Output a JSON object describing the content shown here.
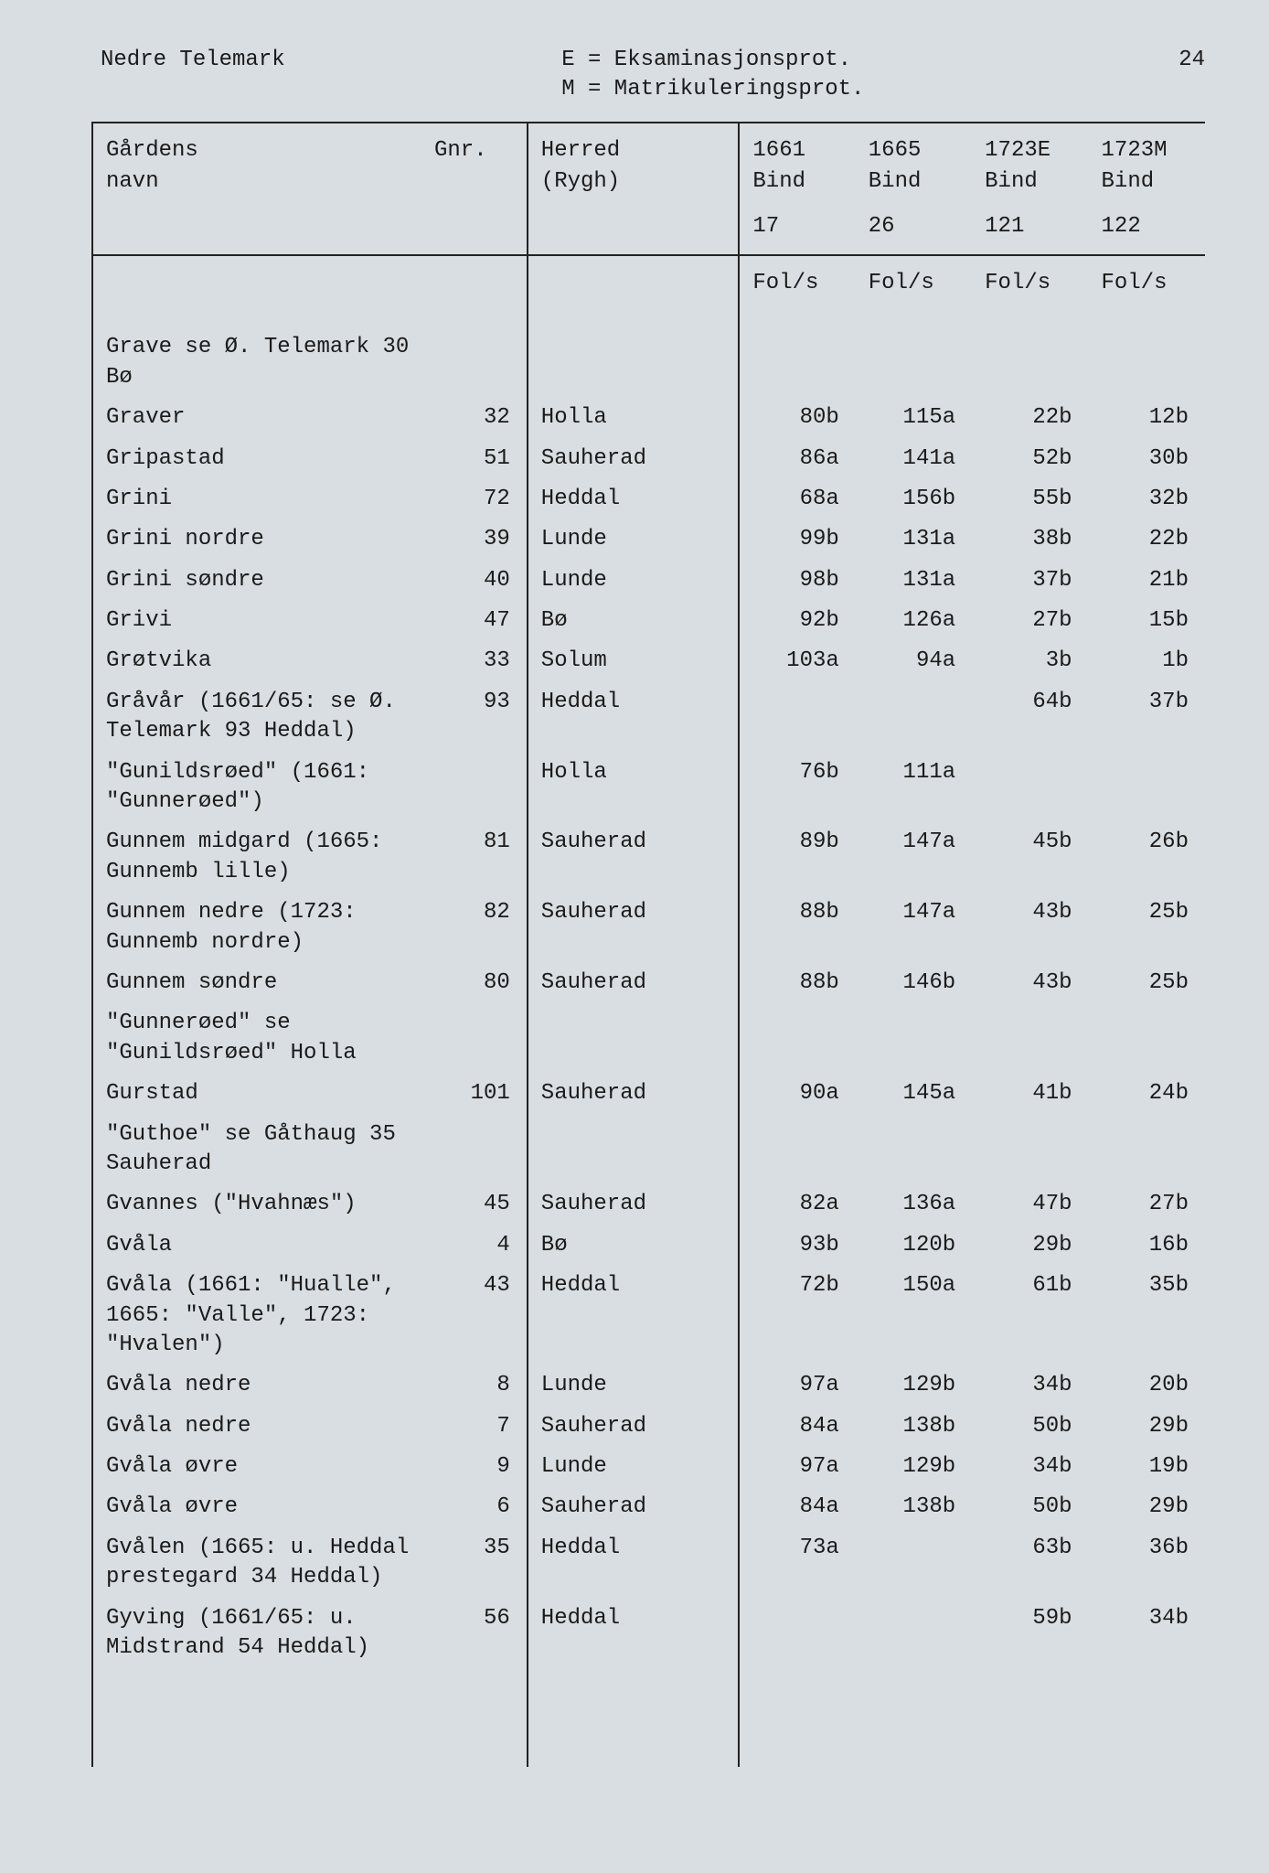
{
  "page_number": "24",
  "region": "Nedre Telemark",
  "legend": {
    "line1": "E = Eksaminasjonsprot.",
    "line2": "M = Matrikuleringsprot."
  },
  "columns": {
    "name_l1": "Gårdens",
    "name_l2": "navn",
    "gnr": "Gnr.",
    "herred_l1": "Herred",
    "herred_l2": "(Rygh)",
    "y1_l1": "1661",
    "y1_l2": "Bind",
    "y1_bind": "17",
    "y2_l1": "1665",
    "y2_l2": "Bind",
    "y2_bind": "26",
    "y3_l1": "1723E",
    "y3_l2": "Bind",
    "y3_bind": "121",
    "y4_l1": "1723M",
    "y4_l2": "Bind",
    "y4_bind": "122",
    "fols": "Fol/s"
  },
  "rows": [
    {
      "name": "Grave se Ø. Telemark 30 Bø",
      "gnr": "",
      "herred": "",
      "c1": "",
      "c2": "",
      "c3": "",
      "c4": ""
    },
    {
      "name": "Graver",
      "gnr": "32",
      "herred": "Holla",
      "c1": "80b",
      "c2": "115a",
      "c3": "22b",
      "c4": "12b"
    },
    {
      "name": "Gripastad",
      "gnr": "51",
      "herred": "Sauherad",
      "c1": "86a",
      "c2": "141a",
      "c3": "52b",
      "c4": "30b"
    },
    {
      "name": "Grini",
      "gnr": "72",
      "herred": "Heddal",
      "c1": "68a",
      "c2": "156b",
      "c3": "55b",
      "c4": "32b"
    },
    {
      "name": "Grini nordre",
      "gnr": "39",
      "herred": "Lunde",
      "c1": "99b",
      "c2": "131a",
      "c3": "38b",
      "c4": "22b"
    },
    {
      "name": "Grini søndre",
      "gnr": "40",
      "herred": "Lunde",
      "c1": "98b",
      "c2": "131a",
      "c3": "37b",
      "c4": "21b"
    },
    {
      "name": "Grivi",
      "gnr": "47",
      "herred": "Bø",
      "c1": "92b",
      "c2": "126a",
      "c3": "27b",
      "c4": "15b"
    },
    {
      "name": "Grøtvika",
      "gnr": "33",
      "herred": "Solum",
      "c1": "103a",
      "c2": "94a",
      "c3": "3b",
      "c4": "1b"
    },
    {
      "name": "Gråvår (1661/65: se Ø. Telemark 93 Heddal)",
      "gnr": "93",
      "herred": "Heddal",
      "c1": "",
      "c2": "",
      "c3": "64b",
      "c4": "37b"
    },
    {
      "name": "\"Gunildsrøed\" (1661: \"Gunnerøed\")",
      "gnr": "",
      "herred": "Holla",
      "c1": "76b",
      "c2": "111a",
      "c3": "",
      "c4": ""
    },
    {
      "name": "Gunnem midgard (1665: Gunnemb lille)",
      "gnr": "81",
      "herred": "Sauherad",
      "c1": "89b",
      "c2": "147a",
      "c3": "45b",
      "c4": "26b"
    },
    {
      "name": "Gunnem nedre (1723: Gunnemb nordre)",
      "gnr": "82",
      "herred": "Sauherad",
      "c1": "88b",
      "c2": "147a",
      "c3": "43b",
      "c4": "25b"
    },
    {
      "name": "Gunnem søndre",
      "gnr": "80",
      "herred": "Sauherad",
      "c1": "88b",
      "c2": "146b",
      "c3": "43b",
      "c4": "25b"
    },
    {
      "name": "\"Gunnerøed\" se \"Gunildsrøed\" Holla",
      "gnr": "",
      "herred": "",
      "c1": "",
      "c2": "",
      "c3": "",
      "c4": ""
    },
    {
      "name": "Gurstad",
      "gnr": "101",
      "herred": "Sauherad",
      "c1": "90a",
      "c2": "145a",
      "c3": "41b",
      "c4": "24b"
    },
    {
      "name": "\"Guthoe\" se Gåthaug 35 Sauherad",
      "gnr": "",
      "herred": "",
      "c1": "",
      "c2": "",
      "c3": "",
      "c4": ""
    },
    {
      "name": "Gvannes (\"Hvahnæs\")",
      "gnr": "45",
      "herred": "Sauherad",
      "c1": "82a",
      "c2": "136a",
      "c3": "47b",
      "c4": "27b"
    },
    {
      "name": "Gvåla",
      "gnr": "4",
      "herred": "Bø",
      "c1": "93b",
      "c2": "120b",
      "c3": "29b",
      "c4": "16b"
    },
    {
      "name": "Gvåla (1661: \"Hualle\", 1665: \"Valle\", 1723: \"Hvalen\")",
      "gnr": "43",
      "herred": "Heddal",
      "c1": "72b",
      "c2": "150a",
      "c3": "61b",
      "c4": "35b"
    },
    {
      "name": "Gvåla nedre",
      "gnr": "8",
      "herred": "Lunde",
      "c1": "97a",
      "c2": "129b",
      "c3": "34b",
      "c4": "20b"
    },
    {
      "name": "Gvåla nedre",
      "gnr": "7",
      "herred": "Sauherad",
      "c1": "84a",
      "c2": "138b",
      "c3": "50b",
      "c4": "29b"
    },
    {
      "name": "Gvåla øvre",
      "gnr": "9",
      "herred": "Lunde",
      "c1": "97a",
      "c2": "129b",
      "c3": "34b",
      "c4": "19b"
    },
    {
      "name": "Gvåla øvre",
      "gnr": "6",
      "herred": "Sauherad",
      "c1": "84a",
      "c2": "138b",
      "c3": "50b",
      "c4": "29b"
    },
    {
      "name": "Gvålen (1665: u. Heddal prestegard 34 Heddal)",
      "gnr": "35",
      "herred": "Heddal",
      "c1": "73a",
      "c2": "",
      "c3": "63b",
      "c4": "36b"
    },
    {
      "name": "Gyving (1661/65: u. Midstrand 54 Heddal)",
      "gnr": "56",
      "herred": "Heddal",
      "c1": "",
      "c2": "",
      "c3": "59b",
      "c4": "34b"
    }
  ],
  "style": {
    "background_color": "#d8dee2",
    "text_color": "#1a1a1a",
    "border_color": "#222222",
    "font_family": "Courier New",
    "font_size_pt": 18
  }
}
